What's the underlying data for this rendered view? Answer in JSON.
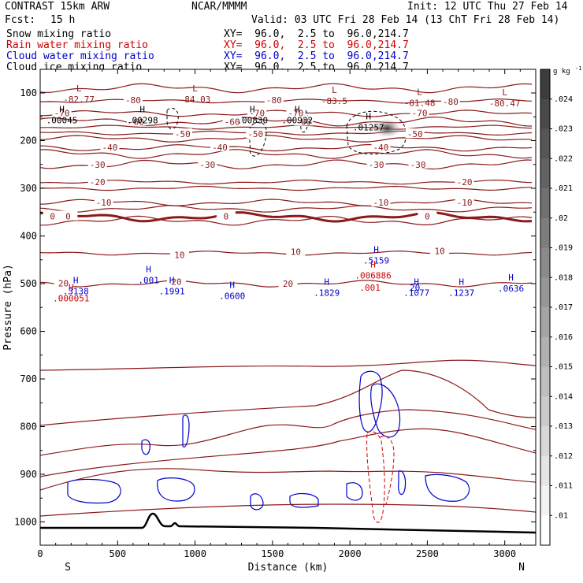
{
  "header": {
    "model": "CONTRAST 15km ARW",
    "org": "NCAR/MMMM",
    "init": "Init: 12 UTC Thu 27 Feb 14",
    "fcst_label": "Fcst:",
    "fcst_value": "15 h",
    "valid": "Valid: 03 UTC Fri 28 Feb 14 (13 ChT Fri 28 Feb 14)",
    "legend": [
      {
        "name": "Snow mixing ratio",
        "xy": "XY=  96.0,  2.5 to  96.0,214.7",
        "color": "#000000"
      },
      {
        "name": "Rain water mixing ratio",
        "xy": "XY=  96.0,  2.5 to  96.0,214.7",
        "color": "#d00000"
      },
      {
        "name": "Cloud water mixing ratio",
        "xy": "XY=  96.0,  2.5 to  96.0,214.7",
        "color": "#0000cc"
      },
      {
        "name": "Cloud ice mixing ratio",
        "xy": "XY=  96.0,  2.5 to  96.0,214.7",
        "color": "#000000"
      }
    ]
  },
  "chart_data": {
    "type": "cross-section",
    "xlabel": "Distance (km)",
    "ylabel": "Pressure (hPa)",
    "xlim": [
      0,
      3200
    ],
    "ylim": [
      1080,
      40
    ],
    "xticks": [
      0,
      500,
      1000,
      1500,
      2000,
      2500,
      3000
    ],
    "xtick_labels": [
      "0",
      "500",
      "1000",
      "1500",
      "2000",
      "2500",
      "3000"
    ],
    "yticks": [
      100,
      200,
      300,
      400,
      500,
      600,
      700,
      800,
      900,
      1000
    ],
    "ytick_labels": [
      "100",
      "200",
      "300",
      "400",
      "500",
      "600",
      "700",
      "800",
      "900",
      "1000"
    ],
    "endpoints": {
      "left": "S",
      "right": "N"
    },
    "colorbar": {
      "unit_label": "g kg",
      "unit_exp": "-1",
      "levels": [
        ".024",
        ".023",
        ".022",
        ".021",
        ".02",
        ".019",
        ".018",
        ".017",
        ".016",
        ".015",
        ".014",
        ".013",
        ".012",
        ".011",
        ".01"
      ]
    },
    "temperature_contours": [
      {
        "level": -80,
        "p": 117
      },
      {
        "level": -70,
        "p": 143
      },
      {
        "level": -60,
        "p": 160
      },
      {
        "level": -50,
        "p": 184
      },
      {
        "level": -40,
        "p": 215
      },
      {
        "level": -30,
        "p": 250
      },
      {
        "level": -20,
        "p": 287
      },
      {
        "level": -10,
        "p": 330
      },
      {
        "level": 0,
        "p": 360
      },
      {
        "level": 10,
        "p": 436
      },
      {
        "level": 20,
        "p": 500
      }
    ],
    "contour_labels": [
      {
        "text": "-80",
        "x": 600,
        "p": 115
      },
      {
        "text": "-80",
        "x": 1510,
        "p": 115
      },
      {
        "text": "-80",
        "x": 2650,
        "p": 118
      },
      {
        "text": "-70",
        "x": 140,
        "p": 142
      },
      {
        "text": "-70",
        "x": 1400,
        "p": 142
      },
      {
        "text": "-70",
        "x": 1650,
        "p": 142
      },
      {
        "text": "-70",
        "x": 2450,
        "p": 142
      },
      {
        "text": "-60",
        "x": 620,
        "p": 160
      },
      {
        "text": "-60",
        "x": 1240,
        "p": 160
      },
      {
        "text": "-60",
        "x": 1700,
        "p": 160
      },
      {
        "text": "-50",
        "x": 920,
        "p": 186
      },
      {
        "text": "-50",
        "x": 1390,
        "p": 186
      },
      {
        "text": "-50",
        "x": 2420,
        "p": 186
      },
      {
        "text": "-40",
        "x": 450,
        "p": 214
      },
      {
        "text": "-40",
        "x": 1160,
        "p": 214
      },
      {
        "text": "-40",
        "x": 2200,
        "p": 214
      },
      {
        "text": "-30",
        "x": 370,
        "p": 250
      },
      {
        "text": "-30",
        "x": 1080,
        "p": 250
      },
      {
        "text": "-30",
        "x": 2170,
        "p": 250
      },
      {
        "text": "-30",
        "x": 2440,
        "p": 250
      },
      {
        "text": "-20",
        "x": 370,
        "p": 287
      },
      {
        "text": "-20",
        "x": 2740,
        "p": 287
      },
      {
        "text": "-10",
        "x": 410,
        "p": 330
      },
      {
        "text": "-10",
        "x": 2200,
        "p": 330
      },
      {
        "text": "-10",
        "x": 2740,
        "p": 330
      },
      {
        "text": "0",
        "x": 80,
        "p": 359
      },
      {
        "text": "0",
        "x": 180,
        "p": 359
      },
      {
        "text": "0",
        "x": 1200,
        "p": 359
      },
      {
        "text": "0",
        "x": 2500,
        "p": 359
      },
      {
        "text": "10",
        "x": 1650,
        "p": 433
      },
      {
        "text": "10",
        "x": 900,
        "p": 440
      },
      {
        "text": "10",
        "x": 2580,
        "p": 431
      },
      {
        "text": "20",
        "x": 150,
        "p": 499
      },
      {
        "text": "20",
        "x": 880,
        "p": 496
      },
      {
        "text": "20",
        "x": 1600,
        "p": 500
      }
    ],
    "extrema": [
      {
        "kind": "L",
        "value": "-82.77",
        "x": 250,
        "p": 110,
        "color": "#8b1a1a"
      },
      {
        "kind": "L",
        "value": "-84.03",
        "x": 1000,
        "p": 110,
        "color": "#8b1a1a"
      },
      {
        "kind": "L",
        "value": "-83.5",
        "x": 1900,
        "p": 113,
        "color": "#8b1a1a"
      },
      {
        "kind": "L",
        "value": "-81.48",
        "x": 2450,
        "p": 117,
        "color": "#8b1a1a"
      },
      {
        "kind": "L",
        "value": "-80.47",
        "x": 3000,
        "p": 118,
        "color": "#8b1a1a"
      },
      {
        "kind": "H",
        "value": ".00045",
        "x": 140,
        "p": 154,
        "color": "#000000"
      },
      {
        "kind": "H",
        "value": ".00298",
        "x": 660,
        "p": 154,
        "color": "#000000"
      },
      {
        "kind": "H",
        "value": ".00830",
        "x": 1370,
        "p": 154,
        "color": "#000000"
      },
      {
        "kind": "H",
        "value": ".00932",
        "x": 1660,
        "p": 154,
        "color": "#000000"
      },
      {
        "kind": "H",
        "value": ".01257",
        "x": 2120,
        "p": 169,
        "color": "#000000"
      },
      {
        "kind": "H",
        "value": ".5159",
        "x": 2170,
        "p": 448,
        "color": "#0000cc"
      },
      {
        "kind": "H",
        "value": ".001",
        "x": 700,
        "p": 489,
        "color": "#0000cc"
      },
      {
        "kind": "H",
        "value": ".3138",
        "x": 230,
        "p": 512,
        "color": "#0000cc"
      },
      {
        "kind": "H",
        "value": ".1991",
        "x": 850,
        "p": 512,
        "color": "#0000cc"
      },
      {
        "kind": "H",
        "value": ".0600",
        "x": 1240,
        "p": 522,
        "color": "#0000cc"
      },
      {
        "kind": "H",
        "value": ".1829",
        "x": 1850,
        "p": 516,
        "color": "#0000cc"
      },
      {
        "kind": "H",
        "value": ".1077",
        "x": 2430,
        "p": 516,
        "color": "#0000cc"
      },
      {
        "kind": "H",
        "value": ".1237",
        "x": 2720,
        "p": 516,
        "color": "#0000cc"
      },
      {
        "kind": "H",
        "value": ".0636",
        "x": 3040,
        "p": 507,
        "color": "#0000cc"
      },
      {
        "kind": "H",
        "value": ".006886",
        "x": 2150,
        "p": 479,
        "color": "#d00000"
      },
      {
        "kind": "H",
        "value": ".000051",
        "x": 200,
        "p": 527,
        "color": "#d00000"
      }
    ],
    "misc_labels": [
      {
        "text": ".001",
        "x": 2130,
        "p": 508,
        "color": "#d00000"
      },
      {
        "text": "20",
        "x": 2420,
        "p": 508,
        "color": "#0000cc"
      }
    ],
    "snow_plume_max": {
      "x": 2240,
      "p": 174
    }
  }
}
